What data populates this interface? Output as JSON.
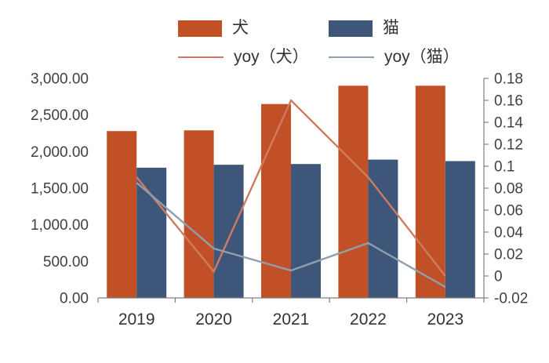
{
  "legend": {
    "items": [
      {
        "label": "犬",
        "type": "bar",
        "color": "#C25027"
      },
      {
        "label": "猫",
        "type": "bar",
        "color": "#3E5679"
      },
      {
        "label": "yoy（犬）",
        "type": "line",
        "color": "#CE7B60"
      },
      {
        "label": "yoy（猫）",
        "type": "line",
        "color": "#8E9FAE"
      }
    ]
  },
  "chart_data": {
    "type": "combo-bar-line",
    "categories": [
      "2019",
      "2020",
      "2021",
      "2022",
      "2023"
    ],
    "bar_series": [
      {
        "name": "犬",
        "color": "#C25027",
        "axis": "left",
        "values": [
          2280,
          2290,
          2650,
          2900,
          2900
        ]
      },
      {
        "name": "猫",
        "color": "#3E5679",
        "axis": "left",
        "values": [
          1780,
          1820,
          1830,
          1890,
          1870
        ]
      }
    ],
    "line_series": [
      {
        "name": "yoy（犬）",
        "color": "#CE7B60",
        "axis": "right",
        "values": [
          0.09,
          0.004,
          0.16,
          0.09,
          0.0
        ]
      },
      {
        "name": "yoy（猫）",
        "color": "#8E9FAE",
        "axis": "right",
        "values": [
          0.085,
          0.025,
          0.005,
          0.03,
          -0.01
        ]
      }
    ],
    "left_axis": {
      "min": 0,
      "max": 3000,
      "ticks": [
        {
          "v": 3000,
          "label": "3,000.00"
        },
        {
          "v": 2500,
          "label": "2,500.00"
        },
        {
          "v": 2000,
          "label": "2,000.00"
        },
        {
          "v": 1500,
          "label": "1,500.00"
        },
        {
          "v": 1000,
          "label": "1,000.00"
        },
        {
          "v": 500,
          "label": "500.00"
        },
        {
          "v": 0,
          "label": "0.00"
        }
      ]
    },
    "right_axis": {
      "min": -0.02,
      "max": 0.18,
      "ticks": [
        {
          "v": 0.18,
          "label": "0.18"
        },
        {
          "v": 0.16,
          "label": "0.16"
        },
        {
          "v": 0.14,
          "label": "0.14"
        },
        {
          "v": 0.12,
          "label": "0.12"
        },
        {
          "v": 0.1,
          "label": "0.1"
        },
        {
          "v": 0.08,
          "label": "0.08"
        },
        {
          "v": 0.06,
          "label": "0.06"
        },
        {
          "v": 0.04,
          "label": "0.04"
        },
        {
          "v": 0.02,
          "label": "0.02"
        },
        {
          "v": 0.0,
          "label": "0"
        },
        {
          "v": -0.02,
          "label": "-0.02"
        }
      ]
    },
    "grid": false,
    "legend_position": "top",
    "axis_color": "#808080",
    "label_color": "#404040"
  }
}
